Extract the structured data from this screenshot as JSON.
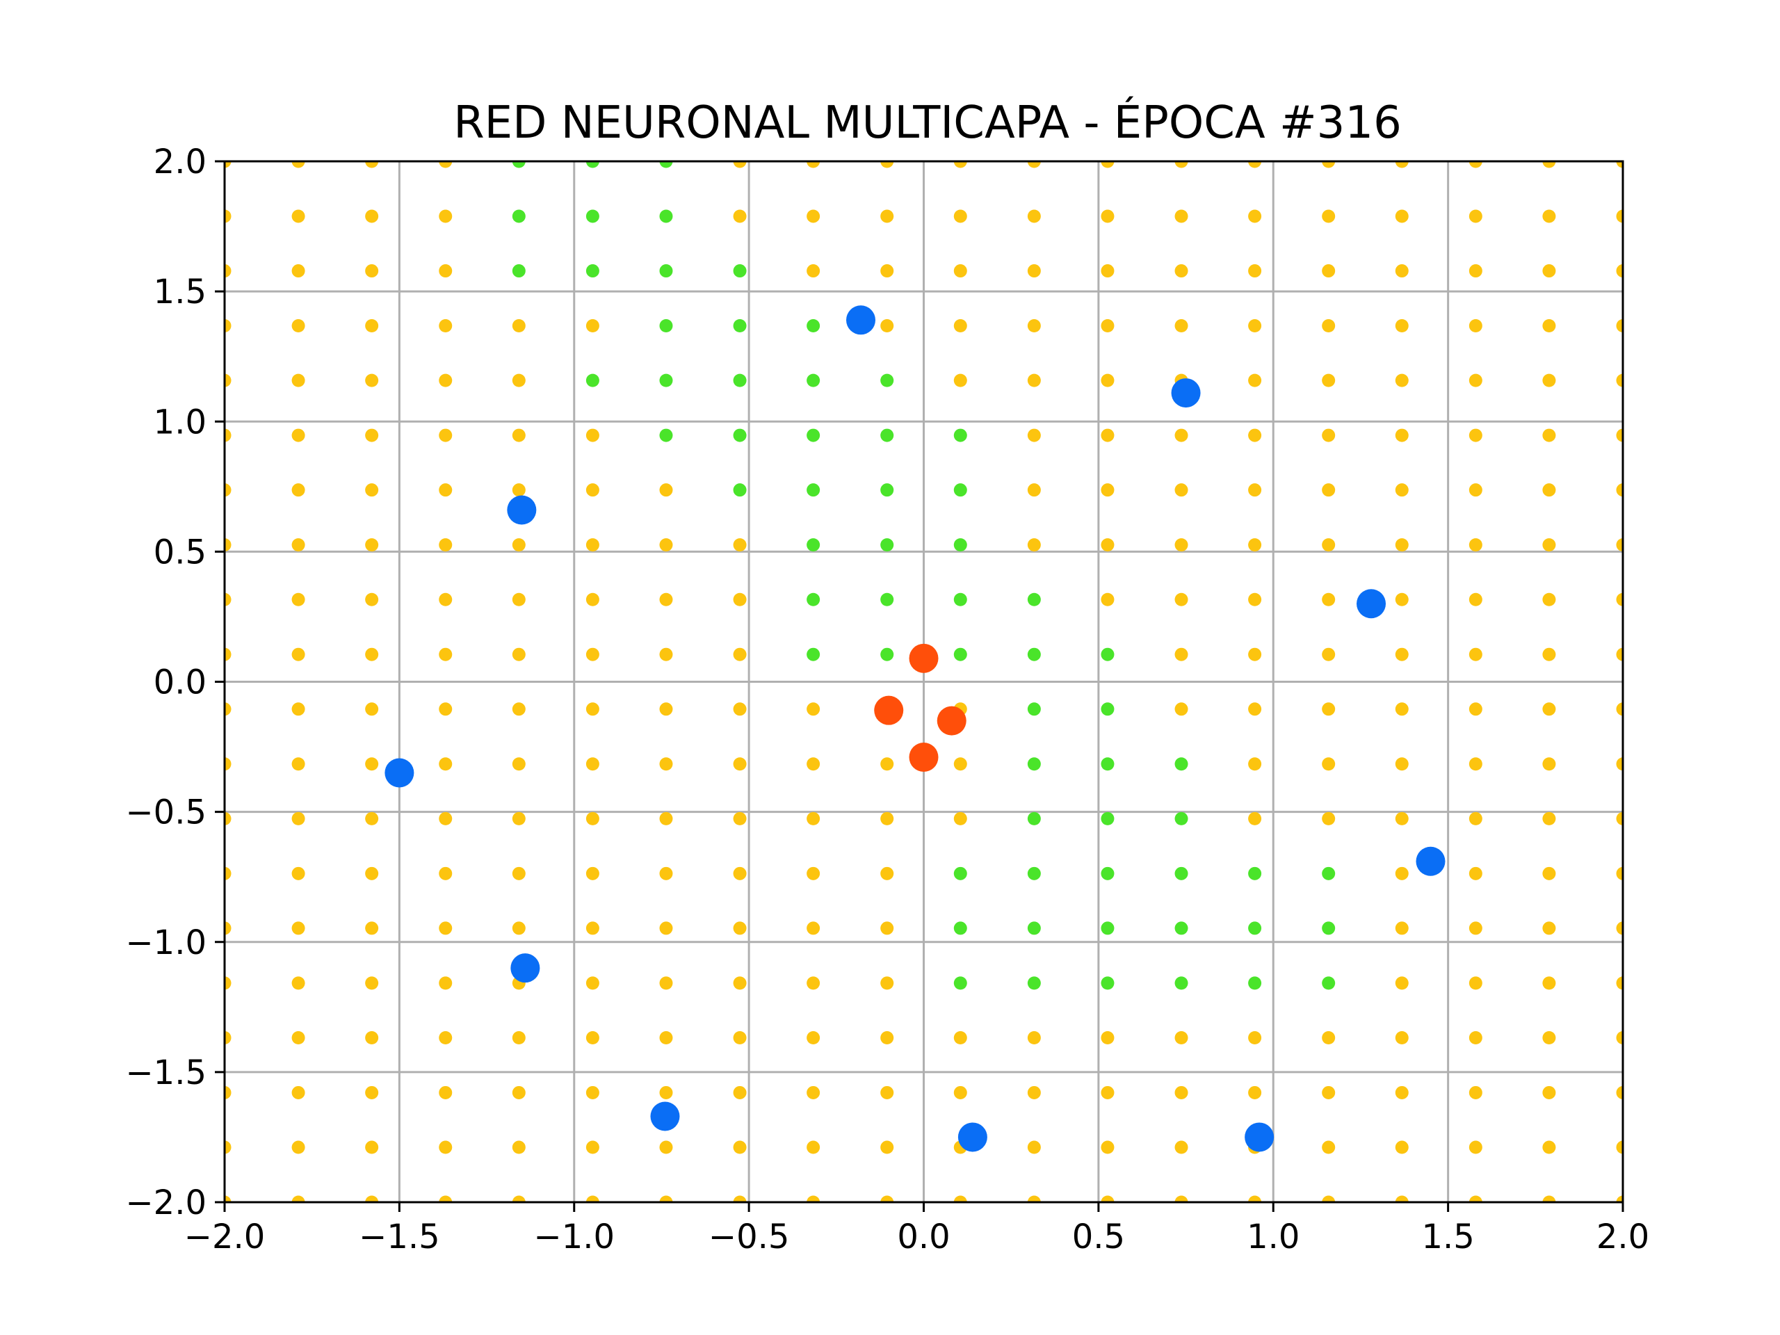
{
  "chart_data": {
    "type": "scatter",
    "title": "RED NEURONAL MULTICAPA - ÉPOCA #316",
    "xlabel": "",
    "ylabel": "",
    "xlim": [
      -2.0,
      2.0
    ],
    "ylim": [
      -2.0,
      2.0
    ],
    "grid": true,
    "x_ticks": [
      -2.0,
      -1.5,
      -1.0,
      -0.5,
      0.0,
      0.5,
      1.0,
      1.5,
      2.0
    ],
    "x_tick_labels": [
      "−2.0",
      "−1.5",
      "−1.0",
      "−0.5",
      "0.0",
      "0.5",
      "1.0",
      "1.5",
      "2.0"
    ],
    "y_ticks": [
      -2.0,
      -1.5,
      -1.0,
      -0.5,
      0.0,
      0.5,
      1.0,
      1.5,
      2.0
    ],
    "y_tick_labels": [
      "−2.0",
      "−1.5",
      "−1.0",
      "−0.5",
      "0.0",
      "0.5",
      "1.0",
      "1.5",
      "2.0"
    ],
    "background_grid": {
      "x": [
        -2.0,
        -1.789,
        -1.579,
        -1.368,
        -1.158,
        -0.947,
        -0.737,
        -0.526,
        -0.316,
        -0.105,
        0.105,
        0.316,
        0.526,
        0.737,
        0.947,
        1.158,
        1.368,
        1.579,
        1.789,
        2.0
      ],
      "y": [
        2.0,
        1.789,
        1.579,
        1.368,
        1.158,
        0.947,
        0.737,
        0.526,
        0.316,
        0.105,
        -0.105,
        -0.316,
        -0.526,
        -0.737,
        -0.947,
        -1.158,
        -1.368,
        -1.579,
        -1.789,
        -2.0
      ],
      "default_color": "#fcc40f",
      "alt_color": "#4ae42a",
      "alt_rows": [
        [
          4,
          6
        ],
        [
          4,
          6
        ],
        [
          4,
          7
        ],
        [
          6,
          8
        ],
        [
          5,
          9
        ],
        [
          6,
          10
        ],
        [
          7,
          10
        ],
        [
          8,
          10
        ],
        [
          8,
          11
        ],
        [
          8,
          12
        ],
        [
          11,
          12
        ],
        [
          11,
          13
        ],
        [
          11,
          13
        ],
        [
          10,
          15
        ],
        [
          10,
          15
        ],
        [
          10,
          15
        ]
      ]
    },
    "series": [
      {
        "color": "#0a6ef5",
        "x": [
          -0.18,
          0.75,
          -1.15,
          1.28,
          -1.5,
          1.45,
          -1.14,
          -0.74,
          0.14,
          0.96
        ],
        "y": [
          1.39,
          1.11,
          0.66,
          0.3,
          -0.35,
          -0.69,
          -1.1,
          -1.67,
          -1.75,
          -1.75
        ]
      },
      {
        "color": "#ff4f0a",
        "x": [
          0.0,
          -0.1,
          0.08,
          0.0
        ],
        "y": [
          0.09,
          -0.11,
          -0.15,
          -0.29
        ]
      }
    ]
  }
}
